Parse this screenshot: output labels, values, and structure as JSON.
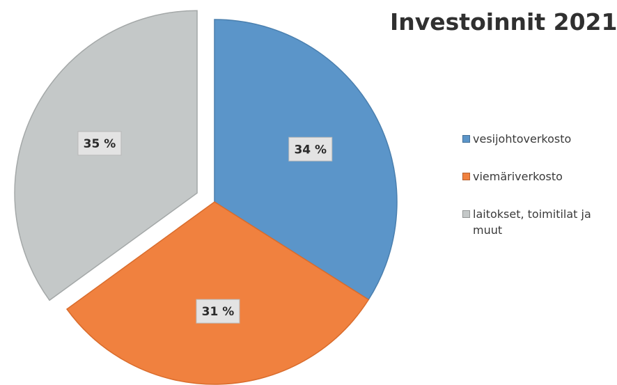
{
  "chart_data": {
    "type": "pie",
    "title": "Investoinnit 2021",
    "categories": [
      "vesijohtoverkosto",
      "viemäriverkosto",
      "laitokset, toimitilat ja muut"
    ],
    "values": [
      34,
      31,
      35
    ],
    "data_labels": [
      "34 %",
      "31 %",
      "35 %"
    ],
    "colors": [
      "#5b95c9",
      "#f0813f",
      "#c4c8c8"
    ],
    "border_colors": [
      "#4a7fae",
      "#d96c2c",
      "#a4a8a8"
    ],
    "exploded": [
      false,
      false,
      true
    ],
    "start_angle_deg": 0,
    "direction": "clockwise",
    "legend": "right"
  }
}
